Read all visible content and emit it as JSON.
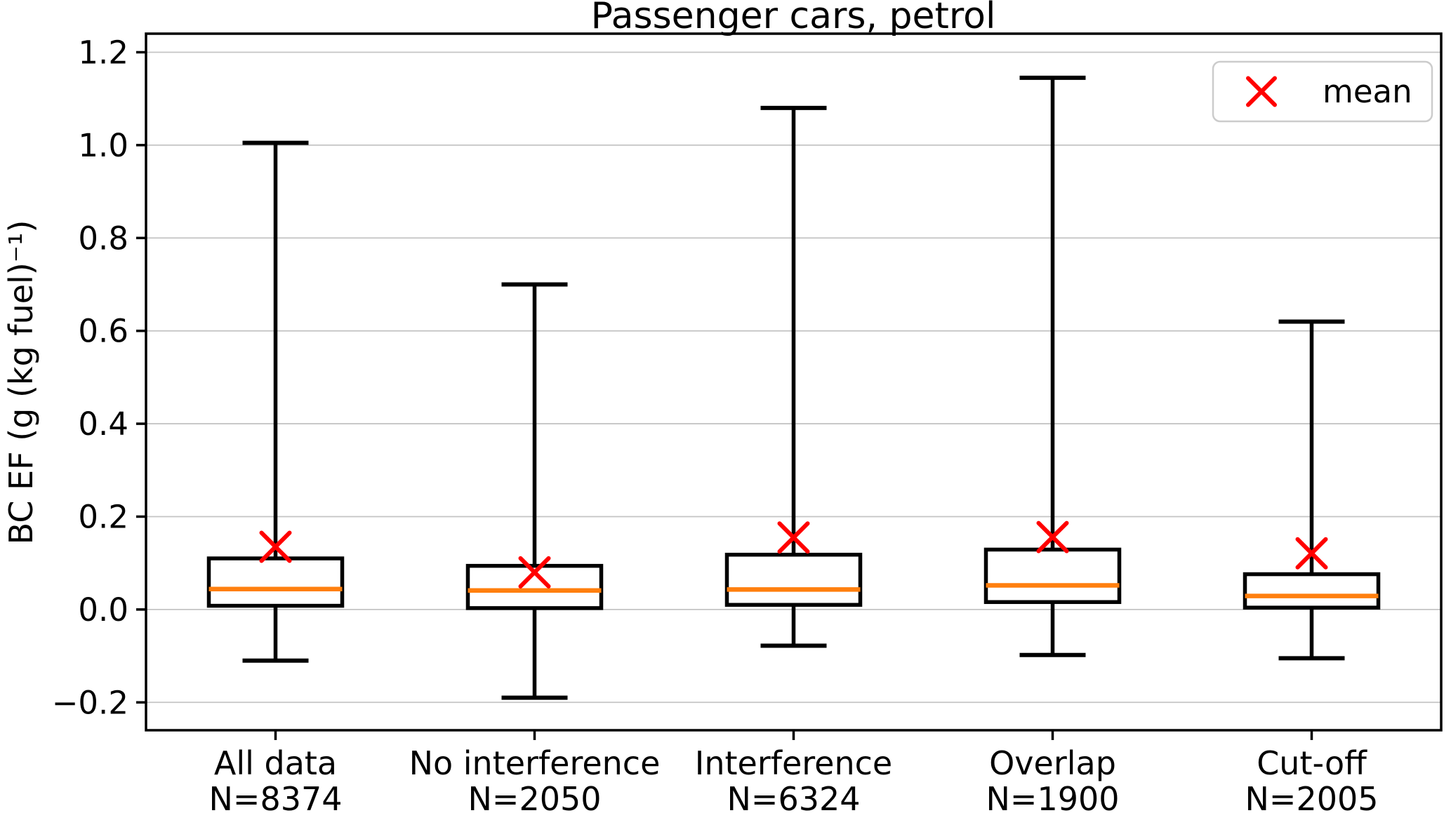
{
  "chart_data": {
    "type": "box",
    "title": "Passenger cars, petrol",
    "ylabel": "BC EF (g (kg fuel)⁻¹)",
    "ylim": [
      -0.26,
      1.24
    ],
    "yticks": [
      1.2,
      1.0,
      0.8,
      0.6,
      0.4,
      0.2,
      0.0,
      -0.2
    ],
    "grid": "horizontal-only",
    "legend": {
      "label": "mean",
      "marker": "x",
      "position": "upper-right"
    },
    "colors": {
      "box_line": "#000000",
      "median_line": "#ff7f0e",
      "mean_marker": "#ff0000",
      "gridline": "#c4c4c4",
      "legend_border": "#cccccc",
      "background": "#ffffff"
    },
    "boxes": [
      {
        "label": "All data",
        "n_label": "N=8374",
        "whisker_low": -0.11,
        "q1": 0.008,
        "median": 0.044,
        "q3": 0.11,
        "whisker_high": 1.005,
        "mean": 0.135
      },
      {
        "label": "No interference",
        "n_label": "N=2050",
        "whisker_low": -0.19,
        "q1": 0.003,
        "median": 0.041,
        "q3": 0.094,
        "whisker_high": 0.7,
        "mean": 0.08
      },
      {
        "label": "Interference",
        "n_label": "N=6324",
        "whisker_low": -0.078,
        "q1": 0.01,
        "median": 0.043,
        "q3": 0.118,
        "whisker_high": 1.08,
        "mean": 0.155
      },
      {
        "label": "Overlap",
        "n_label": "N=1900",
        "whisker_low": -0.098,
        "q1": 0.016,
        "median": 0.052,
        "q3": 0.129,
        "whisker_high": 1.145,
        "mean": 0.156
      },
      {
        "label": "Cut-off",
        "n_label": "N=2005",
        "whisker_low": -0.105,
        "q1": 0.004,
        "median": 0.029,
        "q3": 0.076,
        "whisker_high": 0.62,
        "mean": 0.121
      }
    ]
  }
}
